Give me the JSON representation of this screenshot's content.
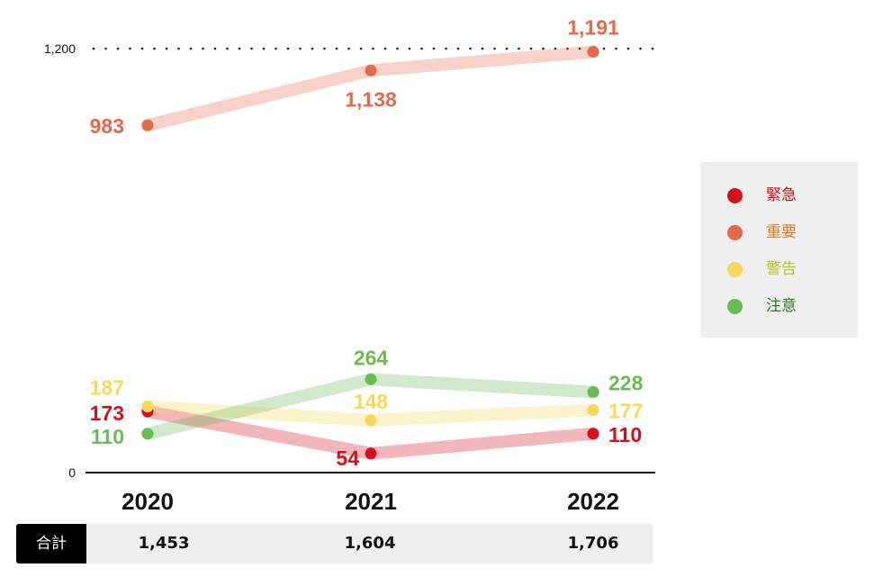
{
  "chart_data": {
    "type": "line",
    "x": [
      "2020",
      "2021",
      "2022"
    ],
    "ylim": [
      0,
      1200
    ],
    "yticks": [
      "0",
      "1,200"
    ],
    "series": [
      {
        "name": "重要",
        "color": "#e4694b",
        "values": [
          983,
          1138,
          1191
        ],
        "labels": [
          "983",
          "1,138",
          "1,191"
        ]
      },
      {
        "name": "緊急",
        "color": "#d4101c",
        "values": [
          173,
          54,
          110
        ],
        "labels": [
          "173",
          "54",
          "110"
        ]
      },
      {
        "name": "警告",
        "color": "#f6d85a",
        "values": [
          187,
          148,
          177
        ],
        "labels": [
          "187",
          "148",
          "177"
        ]
      },
      {
        "name": "注意",
        "color": "#6bbb55",
        "values": [
          110,
          264,
          228
        ],
        "labels": [
          "110",
          "264",
          "228"
        ]
      }
    ],
    "legend": [
      {
        "label": "緊急",
        "dot_color": "#d4101c",
        "text_color": "#d4101c"
      },
      {
        "label": "重要",
        "dot_color": "#e4694b",
        "text_color": "#e07a1c"
      },
      {
        "label": "警告",
        "dot_color": "#f6d85a",
        "text_color": "#b8c42a"
      },
      {
        "label": "注意",
        "dot_color": "#6bbb55",
        "text_color": "#2c7a2c"
      }
    ],
    "legend_position": "right",
    "totals": {
      "label": "合計",
      "values": [
        "1,453",
        "1,604",
        "1,706"
      ]
    }
  }
}
